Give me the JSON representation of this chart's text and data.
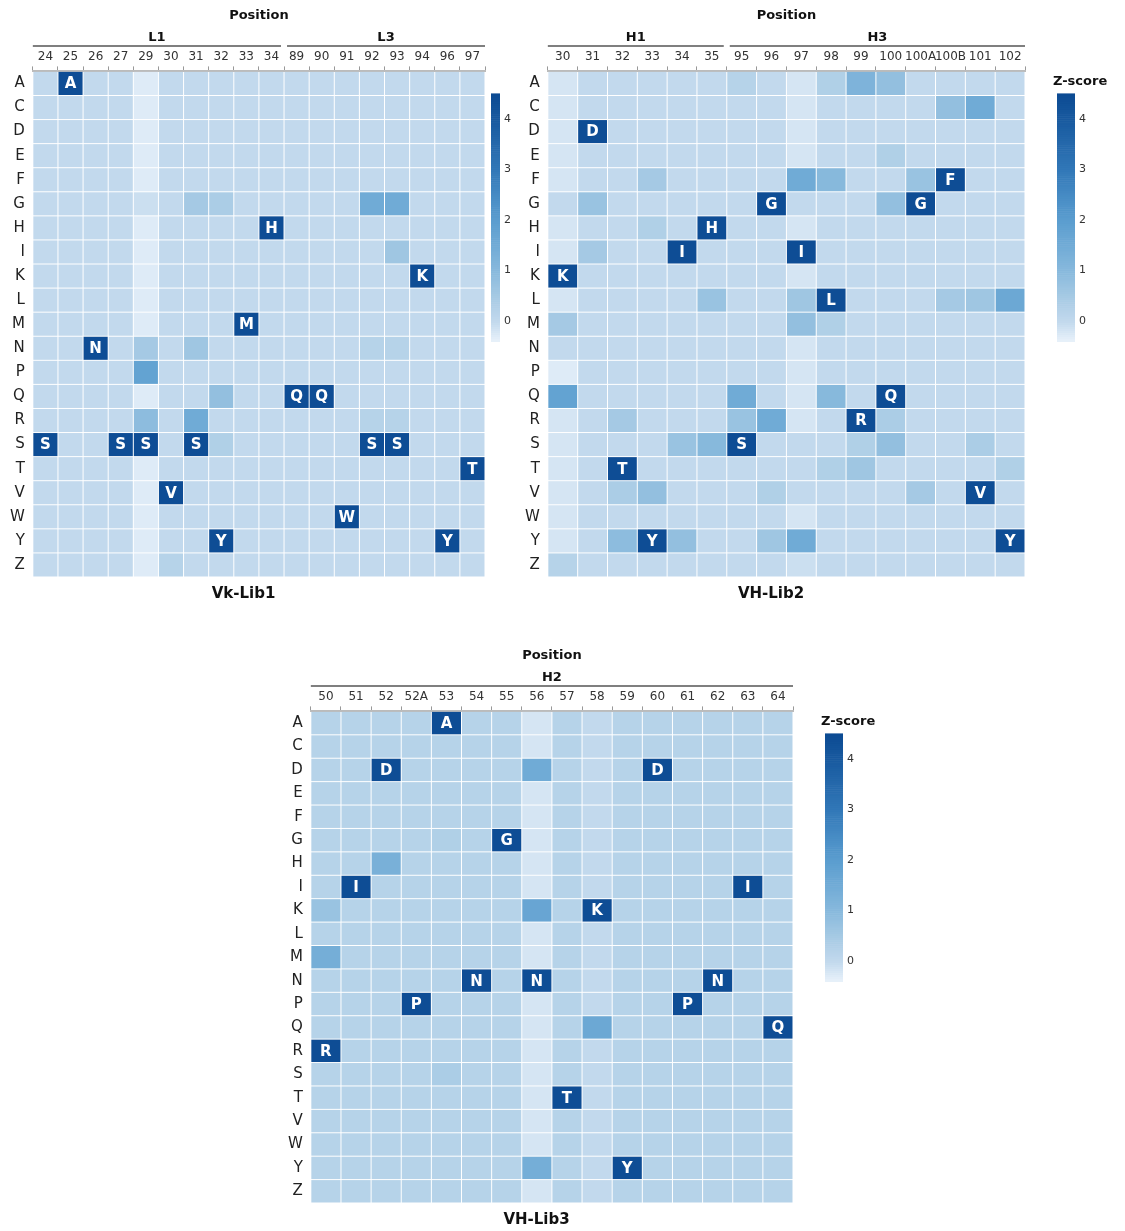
{
  "chart_data": [
    {
      "type": "heatmap",
      "title": "Vk-Lib1",
      "xlabel": "Position",
      "annotations": [
        "L1",
        "L3"
      ],
      "categories": [
        "24",
        "25",
        "26",
        "27",
        "29",
        "30",
        "31",
        "32",
        "33",
        "34",
        "89",
        "90",
        "91",
        "92",
        "93",
        "94",
        "96",
        "97"
      ],
      "y_categories": [
        "A",
        "C",
        "D",
        "E",
        "F",
        "G",
        "H",
        "I",
        "K",
        "L",
        "M",
        "N",
        "P",
        "Q",
        "R",
        "S",
        "T",
        "V",
        "W",
        "Y",
        "Z"
      ],
      "clim": [
        -0.4,
        4.5
      ],
      "cticks": [
        0,
        1,
        2,
        3,
        4
      ],
      "cells": [
        [
          0,
          4.4,
          0,
          0,
          -0.3,
          0,
          0,
          0,
          0,
          0,
          0,
          0,
          0,
          0,
          0,
          0,
          0,
          0
        ],
        [
          0,
          0,
          0,
          0,
          -0.3,
          0,
          0,
          0,
          0,
          0,
          0,
          0,
          0,
          0,
          0,
          0,
          0,
          0
        ],
        [
          0,
          0,
          0,
          0,
          -0.3,
          0,
          0,
          0,
          0,
          0,
          0,
          0,
          0,
          0,
          0,
          0,
          0,
          0
        ],
        [
          0,
          0,
          0,
          0,
          -0.3,
          0,
          0,
          0,
          0,
          0,
          0,
          0,
          0,
          0,
          0,
          0,
          0,
          0
        ],
        [
          0,
          0,
          0,
          0,
          -0.3,
          0,
          0,
          0,
          0,
          0,
          0,
          0,
          0,
          0,
          0,
          0,
          0,
          0
        ],
        [
          0,
          0,
          0,
          0,
          -0.1,
          0,
          0.5,
          0.4,
          0,
          0,
          0,
          0,
          0,
          1.5,
          1.5,
          0,
          0,
          0
        ],
        [
          0,
          0,
          0,
          0,
          -0.3,
          0,
          0,
          0,
          0,
          4.4,
          0,
          0,
          0,
          0,
          0,
          0,
          0,
          0
        ],
        [
          0,
          0,
          0,
          0,
          -0.3,
          0,
          0,
          0,
          0,
          0,
          0,
          0,
          0,
          0,
          0.6,
          0,
          0,
          0
        ],
        [
          0,
          0,
          0,
          0,
          -0.3,
          0,
          0,
          0,
          0,
          0,
          0,
          0,
          0,
          0,
          0,
          4.4,
          0,
          0
        ],
        [
          0,
          0,
          0,
          0,
          -0.3,
          0,
          0,
          0,
          0,
          0,
          0,
          0,
          0,
          0,
          0,
          0,
          0,
          0
        ],
        [
          0,
          0,
          0,
          0,
          -0.3,
          0,
          0,
          0,
          4.4,
          0,
          0,
          0,
          0,
          0,
          0,
          0,
          0,
          0
        ],
        [
          0,
          0,
          4.4,
          0,
          0.5,
          0,
          0.6,
          0,
          0,
          0,
          0,
          0,
          0,
          0.2,
          0.2,
          0,
          0,
          0
        ],
        [
          0,
          0,
          0,
          0,
          1.8,
          0,
          0,
          0,
          0,
          0,
          0,
          0,
          0,
          0,
          0,
          0,
          0,
          0
        ],
        [
          0,
          0,
          0,
          0,
          -0.3,
          0,
          0,
          0.8,
          0,
          0,
          4.4,
          4.4,
          0,
          0,
          0,
          0,
          0,
          0
        ],
        [
          0,
          0,
          0,
          0,
          0.9,
          0,
          1.5,
          0,
          0,
          0,
          0,
          0,
          0,
          0.2,
          0.2,
          0,
          0,
          0
        ],
        [
          4.4,
          0,
          0,
          4.4,
          4.4,
          0,
          4.4,
          0.3,
          0,
          0,
          0,
          0,
          0,
          4.4,
          4.4,
          0,
          0,
          0
        ],
        [
          0,
          0,
          0,
          0,
          -0.3,
          0,
          0,
          0,
          0,
          0,
          0,
          0,
          0,
          0,
          0,
          0,
          0,
          4.4
        ],
        [
          0,
          0,
          0,
          0,
          -0.3,
          4.4,
          0,
          0,
          0,
          0,
          0,
          0,
          0,
          0,
          0,
          0,
          0,
          0
        ],
        [
          0,
          0,
          0,
          0,
          -0.3,
          0,
          0,
          0,
          0,
          0,
          0,
          0,
          4.4,
          0,
          0,
          0,
          0,
          0
        ],
        [
          0,
          0,
          0,
          0,
          -0.3,
          0,
          0,
          4.4,
          0,
          0,
          0,
          0,
          0,
          0,
          0,
          0,
          4.4,
          0
        ],
        [
          0,
          0,
          0,
          0,
          -0.3,
          0.2,
          0,
          0,
          0,
          0,
          0,
          0,
          0,
          0,
          0,
          0,
          0,
          0
        ]
      ],
      "cell_labels": [
        [
          null,
          "A",
          null,
          null,
          null,
          null,
          null,
          null,
          null,
          null,
          null,
          null,
          null,
          null,
          null,
          null,
          null,
          null
        ],
        [
          null,
          null,
          null,
          null,
          null,
          null,
          null,
          null,
          null,
          null,
          null,
          null,
          null,
          null,
          null,
          null,
          null,
          null
        ],
        [
          null,
          null,
          null,
          null,
          null,
          null,
          null,
          null,
          null,
          null,
          null,
          null,
          null,
          null,
          null,
          null,
          null,
          null
        ],
        [
          null,
          null,
          null,
          null,
          null,
          null,
          null,
          null,
          null,
          null,
          null,
          null,
          null,
          null,
          null,
          null,
          null,
          null
        ],
        [
          null,
          null,
          null,
          null,
          null,
          null,
          null,
          null,
          null,
          null,
          null,
          null,
          null,
          null,
          null,
          null,
          null,
          null
        ],
        [
          null,
          null,
          null,
          null,
          null,
          null,
          null,
          null,
          null,
          null,
          null,
          null,
          null,
          null,
          null,
          null,
          null,
          null
        ],
        [
          null,
          null,
          null,
          null,
          null,
          null,
          null,
          null,
          null,
          "H",
          null,
          null,
          null,
          null,
          null,
          null,
          null,
          null
        ],
        [
          null,
          null,
          null,
          null,
          null,
          null,
          null,
          null,
          null,
          null,
          null,
          null,
          null,
          null,
          null,
          null,
          null,
          null
        ],
        [
          null,
          null,
          null,
          null,
          null,
          null,
          null,
          null,
          null,
          null,
          null,
          null,
          null,
          null,
          null,
          "K",
          null,
          null
        ],
        [
          null,
          null,
          null,
          null,
          null,
          null,
          null,
          null,
          null,
          null,
          null,
          null,
          null,
          null,
          null,
          null,
          null,
          null
        ],
        [
          null,
          null,
          null,
          null,
          null,
          null,
          null,
          null,
          "M",
          null,
          null,
          null,
          null,
          null,
          null,
          null,
          null,
          null
        ],
        [
          null,
          null,
          "N",
          null,
          null,
          null,
          null,
          null,
          null,
          null,
          null,
          null,
          null,
          null,
          null,
          null,
          null,
          null
        ],
        [
          null,
          null,
          null,
          null,
          null,
          null,
          null,
          null,
          null,
          null,
          null,
          null,
          null,
          null,
          null,
          null,
          null,
          null
        ],
        [
          null,
          null,
          null,
          null,
          null,
          null,
          null,
          null,
          null,
          null,
          "Q",
          "Q",
          null,
          null,
          null,
          null,
          null,
          null
        ],
        [
          null,
          null,
          null,
          null,
          null,
          null,
          null,
          null,
          null,
          null,
          null,
          null,
          null,
          null,
          null,
          null,
          null,
          null
        ],
        [
          "S",
          null,
          null,
          "S",
          "S",
          null,
          "S",
          null,
          null,
          null,
          null,
          null,
          null,
          "S",
          "S",
          null,
          null,
          null
        ],
        [
          null,
          null,
          null,
          null,
          null,
          null,
          null,
          null,
          null,
          null,
          null,
          null,
          null,
          null,
          null,
          null,
          null,
          "T"
        ],
        [
          null,
          null,
          null,
          null,
          null,
          "V",
          null,
          null,
          null,
          null,
          null,
          null,
          null,
          null,
          null,
          null,
          null,
          null
        ],
        [
          null,
          null,
          null,
          null,
          null,
          null,
          null,
          null,
          null,
          null,
          null,
          null,
          "W",
          null,
          null,
          null,
          null,
          null
        ],
        [
          null,
          null,
          null,
          null,
          null,
          null,
          null,
          "Y",
          null,
          null,
          null,
          null,
          null,
          null,
          null,
          null,
          "Y",
          null
        ],
        [
          null,
          null,
          null,
          null,
          null,
          null,
          null,
          null,
          null,
          null,
          null,
          null,
          null,
          null,
          null,
          null,
          null,
          null
        ]
      ]
    },
    {
      "type": "heatmap",
      "title": "VH-Lib2",
      "xlabel": "Position",
      "clabel": "Z-score",
      "annotations": [
        "H1",
        "H3"
      ],
      "categories": [
        "30",
        "31",
        "32",
        "33",
        "34",
        "35",
        "95",
        "96",
        "97",
        "98",
        "99",
        "100",
        "100A",
        "100B",
        "101",
        "102"
      ],
      "y_categories": [
        "A",
        "C",
        "D",
        "E",
        "F",
        "G",
        "H",
        "I",
        "K",
        "L",
        "M",
        "N",
        "P",
        "Q",
        "R",
        "S",
        "T",
        "V",
        "W",
        "Y",
        "Z"
      ],
      "clim": [
        -0.4,
        4.5
      ],
      "cticks": [
        0,
        1,
        2,
        3,
        4
      ],
      "cells": [
        [
          -0.2,
          0,
          0,
          0,
          0,
          0,
          0.2,
          0,
          -0.2,
          0.3,
          1.2,
          0.8,
          0,
          0,
          0,
          0
        ],
        [
          -0.2,
          0,
          0,
          0,
          0,
          0,
          0,
          0,
          -0.2,
          0,
          0,
          0,
          0,
          0.8,
          1.5,
          0
        ],
        [
          -0.2,
          4.4,
          0,
          0,
          0,
          0,
          0,
          0,
          -0.2,
          0,
          0,
          0,
          0,
          0,
          0,
          0
        ],
        [
          -0.2,
          0,
          0,
          0,
          0,
          0,
          0,
          0,
          -0.2,
          0,
          0,
          0.3,
          0,
          0,
          0,
          0
        ],
        [
          -0.2,
          0,
          0,
          0.5,
          0,
          0,
          0,
          0,
          1.5,
          1,
          0,
          0,
          0.7,
          4.4,
          0,
          0
        ],
        [
          0,
          0.7,
          0,
          0,
          0,
          0,
          0,
          4.4,
          0,
          0,
          0,
          0.8,
          4.4,
          0,
          0,
          0
        ],
        [
          -0.2,
          0,
          0,
          0.3,
          0,
          4.4,
          0,
          0,
          -0.2,
          0,
          0,
          0,
          0,
          0,
          0,
          0
        ],
        [
          -0.2,
          0.5,
          0,
          0,
          4.4,
          0,
          0,
          0,
          4.4,
          0,
          0,
          0,
          0,
          0,
          0,
          0
        ],
        [
          4.4,
          0,
          0,
          0,
          0,
          0,
          0,
          0,
          -0.2,
          0,
          0,
          0,
          0,
          0,
          0,
          0
        ],
        [
          -0.2,
          0,
          0,
          0,
          0,
          0.7,
          0,
          0,
          0.6,
          4.4,
          0,
          0,
          0,
          0.5,
          0.6,
          1.6
        ],
        [
          0.5,
          0,
          0,
          0,
          0,
          0,
          0,
          0,
          0.8,
          0.3,
          0,
          0,
          0,
          0,
          0,
          0
        ],
        [
          0,
          0,
          0,
          0,
          0,
          0,
          0,
          0,
          -0.2,
          0,
          0,
          0,
          0,
          0,
          0,
          0
        ],
        [
          -0.3,
          0,
          0,
          0,
          0,
          0,
          0,
          0,
          -0.2,
          0,
          0,
          0,
          0,
          0,
          0,
          0
        ],
        [
          1.8,
          0,
          0,
          0,
          0,
          0,
          1.5,
          0,
          -0.2,
          1,
          0,
          4.4,
          0,
          0,
          0,
          0
        ],
        [
          -0.2,
          0,
          0.5,
          0,
          0,
          0,
          0.7,
          1.5,
          -0.2,
          0,
          4.4,
          0.4,
          0,
          0,
          0,
          0
        ],
        [
          -0.2,
          0,
          0,
          0,
          0.7,
          1,
          4.4,
          0,
          0,
          0,
          0.3,
          0.8,
          0,
          0,
          0.4,
          0
        ],
        [
          -0.2,
          0,
          4.4,
          0,
          0,
          0,
          0,
          0,
          0,
          0.3,
          0.6,
          0,
          0,
          0,
          0,
          0.3
        ],
        [
          -0.2,
          0,
          0.4,
          0.8,
          0,
          0,
          0,
          0.3,
          0,
          0,
          0,
          0,
          0.5,
          0,
          4.4,
          0
        ],
        [
          -0.2,
          0,
          0,
          0,
          0,
          0,
          0,
          0,
          -0.2,
          0,
          0,
          0,
          0,
          0,
          0,
          0
        ],
        [
          -0.2,
          0,
          0.9,
          4.4,
          0.8,
          0,
          0,
          0.6,
          1.5,
          0,
          0,
          0,
          0,
          0,
          0,
          4.4
        ],
        [
          0.2,
          0,
          0,
          0,
          0,
          0,
          0,
          0,
          -0.1,
          0,
          0,
          0,
          0,
          0,
          0,
          0
        ]
      ],
      "cell_labels": [
        [
          null,
          null,
          null,
          null,
          null,
          null,
          null,
          null,
          null,
          null,
          null,
          null,
          null,
          null,
          null,
          null
        ],
        [
          null,
          null,
          null,
          null,
          null,
          null,
          null,
          null,
          null,
          null,
          null,
          null,
          null,
          null,
          null,
          null
        ],
        [
          null,
          "D",
          null,
          null,
          null,
          null,
          null,
          null,
          null,
          null,
          null,
          null,
          null,
          null,
          null,
          null
        ],
        [
          null,
          null,
          null,
          null,
          null,
          null,
          null,
          null,
          null,
          null,
          null,
          null,
          null,
          null,
          null,
          null
        ],
        [
          null,
          null,
          null,
          null,
          null,
          null,
          null,
          null,
          null,
          null,
          null,
          null,
          null,
          "F",
          null,
          null
        ],
        [
          null,
          null,
          null,
          null,
          null,
          null,
          null,
          "G",
          null,
          null,
          null,
          null,
          "G",
          null,
          null,
          null
        ],
        [
          null,
          null,
          null,
          null,
          null,
          "H",
          null,
          null,
          null,
          null,
          null,
          null,
          null,
          null,
          null,
          null
        ],
        [
          null,
          null,
          null,
          null,
          "I",
          null,
          null,
          null,
          "I",
          null,
          null,
          null,
          null,
          null,
          null,
          null
        ],
        [
          "K",
          null,
          null,
          null,
          null,
          null,
          null,
          null,
          null,
          null,
          null,
          null,
          null,
          null,
          null,
          null
        ],
        [
          null,
          null,
          null,
          null,
          null,
          null,
          null,
          null,
          null,
          "L",
          null,
          null,
          null,
          null,
          null,
          null
        ],
        [
          null,
          null,
          null,
          null,
          null,
          null,
          null,
          null,
          null,
          null,
          null,
          null,
          null,
          null,
          null,
          null
        ],
        [
          null,
          null,
          null,
          null,
          null,
          null,
          null,
          null,
          null,
          null,
          null,
          null,
          null,
          null,
          null,
          null
        ],
        [
          null,
          null,
          null,
          null,
          null,
          null,
          null,
          null,
          null,
          null,
          null,
          null,
          null,
          null,
          null,
          null
        ],
        [
          null,
          null,
          null,
          null,
          null,
          null,
          null,
          null,
          null,
          null,
          null,
          "Q",
          null,
          null,
          null,
          null
        ],
        [
          null,
          null,
          null,
          null,
          null,
          null,
          null,
          null,
          null,
          null,
          "R",
          null,
          null,
          null,
          null,
          null
        ],
        [
          null,
          null,
          null,
          null,
          null,
          null,
          "S",
          null,
          null,
          null,
          null,
          null,
          null,
          null,
          null,
          null
        ],
        [
          null,
          null,
          "T",
          null,
          null,
          null,
          null,
          null,
          null,
          null,
          null,
          null,
          null,
          null,
          null,
          null
        ],
        [
          null,
          null,
          null,
          null,
          null,
          null,
          null,
          null,
          null,
          null,
          null,
          null,
          null,
          null,
          "V",
          null
        ],
        [
          null,
          null,
          null,
          null,
          null,
          null,
          null,
          null,
          null,
          null,
          null,
          null,
          null,
          null,
          null,
          null
        ],
        [
          null,
          null,
          null,
          "Y",
          null,
          null,
          null,
          null,
          null,
          null,
          null,
          null,
          null,
          null,
          null,
          "Y"
        ],
        [
          null,
          null,
          null,
          null,
          null,
          null,
          null,
          null,
          null,
          null,
          null,
          null,
          null,
          null,
          null,
          null
        ]
      ]
    },
    {
      "type": "heatmap",
      "title": "VH-Lib3",
      "xlabel": "Position",
      "clabel": "Z-score",
      "annotations": [
        "H2"
      ],
      "categories": [
        "50",
        "51",
        "52",
        "52A",
        "53",
        "54",
        "55",
        "56",
        "57",
        "58",
        "59",
        "60",
        "61",
        "62",
        "63",
        "64"
      ],
      "y_categories": [
        "A",
        "C",
        "D",
        "E",
        "F",
        "G",
        "H",
        "I",
        "K",
        "L",
        "M",
        "N",
        "P",
        "Q",
        "R",
        "S",
        "T",
        "V",
        "W",
        "Y",
        "Z"
      ],
      "clim": [
        -0.4,
        4.5
      ],
      "cticks": [
        0,
        1,
        2,
        3,
        4
      ],
      "cells": [
        [
          0.2,
          0.2,
          0.2,
          0.2,
          4.4,
          0.2,
          0.2,
          -0.2,
          0.2,
          0,
          0.2,
          0.2,
          0.2,
          0.2,
          0.2,
          0.2
        ],
        [
          0.2,
          0.2,
          0.2,
          0.2,
          0.2,
          0.2,
          0.2,
          -0.2,
          0.2,
          0,
          0.2,
          0.2,
          0.2,
          0.2,
          0.2,
          0.2
        ],
        [
          0.2,
          0.2,
          4.4,
          0.2,
          0.2,
          0.2,
          0.2,
          1.5,
          0.2,
          0,
          0.2,
          4.4,
          0.2,
          0.2,
          0.2,
          0.2
        ],
        [
          0.2,
          0.2,
          0.2,
          0.2,
          0.2,
          0.2,
          0.2,
          -0.2,
          0.2,
          0,
          0.2,
          0.2,
          0.2,
          0.2,
          0.2,
          0.2
        ],
        [
          0.2,
          0.2,
          0.2,
          0.2,
          0.2,
          0.2,
          0.2,
          -0.2,
          0.2,
          0,
          0.2,
          0.2,
          0.2,
          0.2,
          0.2,
          0.2
        ],
        [
          0.2,
          0.2,
          0.2,
          0.2,
          0.3,
          0.2,
          4.4,
          -0.2,
          0.2,
          0,
          0.2,
          0.2,
          0.2,
          0.2,
          0.2,
          0.2
        ],
        [
          0.2,
          0.2,
          1.3,
          0.2,
          0.2,
          0.2,
          0.2,
          -0.2,
          0.2,
          0,
          0.2,
          0.2,
          0.2,
          0.2,
          0.2,
          0.2
        ],
        [
          0.2,
          4.4,
          0.2,
          0.2,
          0.2,
          0.2,
          0.2,
          -0.2,
          0.2,
          0,
          0.2,
          0.2,
          0.2,
          0.2,
          4.4,
          0.2
        ],
        [
          0.7,
          0.2,
          0.2,
          0.2,
          0.2,
          0.2,
          0.2,
          1.7,
          0.2,
          4.4,
          0.2,
          0.2,
          0.2,
          0.2,
          0.2,
          0.2
        ],
        [
          0.2,
          0.2,
          0.2,
          0.2,
          0.2,
          0.2,
          0.2,
          -0.2,
          0.2,
          0,
          0.2,
          0.2,
          0.2,
          0.2,
          0.2,
          0.2
        ],
        [
          1.4,
          0.2,
          0.2,
          0.2,
          0.2,
          0.2,
          0.2,
          -0.2,
          0.2,
          0,
          0.2,
          0.2,
          0.2,
          0.2,
          0.2,
          0.2
        ],
        [
          0.2,
          0.2,
          0.2,
          0.2,
          0.2,
          4.4,
          0.2,
          4.4,
          0.2,
          0,
          0.2,
          0.2,
          0.2,
          4.4,
          0.2,
          0.2
        ],
        [
          0.2,
          0.2,
          0.2,
          4.4,
          0.2,
          0.2,
          0.2,
          -0.2,
          0.2,
          0,
          0.2,
          0.2,
          4.4,
          0.2,
          0.2,
          0.2
        ],
        [
          0.2,
          0.2,
          0.2,
          0.2,
          0.2,
          0.2,
          0.2,
          -0.2,
          0.2,
          1.6,
          0.2,
          0.2,
          0.2,
          0.2,
          0.2,
          4.4
        ],
        [
          4.4,
          0.2,
          0.2,
          0.2,
          0.2,
          0.2,
          0.2,
          -0.2,
          0.2,
          0,
          0.2,
          0.2,
          0.2,
          0.2,
          0.2,
          0.2
        ],
        [
          0.2,
          0.2,
          0.2,
          0.2,
          0.4,
          0.2,
          0.2,
          -0.2,
          0.2,
          0,
          0.2,
          0.2,
          0.2,
          0.2,
          0.2,
          0.2
        ],
        [
          0.2,
          0.2,
          0.2,
          0.2,
          0.2,
          0.2,
          0.2,
          -0.2,
          4.4,
          0,
          0.2,
          0.2,
          0.2,
          0.2,
          0.2,
          0.2
        ],
        [
          0.2,
          0.2,
          0.2,
          0.2,
          0.2,
          0.2,
          0.2,
          -0.2,
          0.2,
          0,
          0.2,
          0.2,
          0.2,
          0.2,
          0.2,
          0.2
        ],
        [
          0.2,
          0.2,
          0.2,
          0.2,
          0.2,
          0.2,
          0.2,
          -0.2,
          0.2,
          0,
          0.2,
          0.2,
          0.2,
          0.2,
          0.2,
          0.2
        ],
        [
          0.2,
          0.2,
          0.2,
          0.2,
          0.2,
          0.2,
          0.2,
          1.4,
          0.2,
          0,
          4.4,
          0.2,
          0.2,
          0.2,
          0.2,
          0.2
        ],
        [
          0.2,
          0.2,
          0.2,
          0.2,
          0.2,
          0.2,
          0.2,
          -0.2,
          0.2,
          0,
          0.2,
          0.2,
          0.2,
          0.2,
          0.2,
          0.2
        ]
      ],
      "cell_labels": [
        [
          null,
          null,
          null,
          null,
          "A",
          null,
          null,
          null,
          null,
          null,
          null,
          null,
          null,
          null,
          null,
          null
        ],
        [
          null,
          null,
          null,
          null,
          null,
          null,
          null,
          null,
          null,
          null,
          null,
          null,
          null,
          null,
          null,
          null
        ],
        [
          null,
          null,
          "D",
          null,
          null,
          null,
          null,
          null,
          null,
          null,
          null,
          "D",
          null,
          null,
          null,
          null
        ],
        [
          null,
          null,
          null,
          null,
          null,
          null,
          null,
          null,
          null,
          null,
          null,
          null,
          null,
          null,
          null,
          null
        ],
        [
          null,
          null,
          null,
          null,
          null,
          null,
          null,
          null,
          null,
          null,
          null,
          null,
          null,
          null,
          null,
          null
        ],
        [
          null,
          null,
          null,
          null,
          null,
          null,
          "G",
          null,
          null,
          null,
          null,
          null,
          null,
          null,
          null,
          null
        ],
        [
          null,
          null,
          null,
          null,
          null,
          null,
          null,
          null,
          null,
          null,
          null,
          null,
          null,
          null,
          null,
          null
        ],
        [
          null,
          "I",
          null,
          null,
          null,
          null,
          null,
          null,
          null,
          null,
          null,
          null,
          null,
          null,
          "I",
          null
        ],
        [
          null,
          null,
          null,
          null,
          null,
          null,
          null,
          null,
          null,
          "K",
          null,
          null,
          null,
          null,
          null,
          null
        ],
        [
          null,
          null,
          null,
          null,
          null,
          null,
          null,
          null,
          null,
          null,
          null,
          null,
          null,
          null,
          null,
          null
        ],
        [
          null,
          null,
          null,
          null,
          null,
          null,
          null,
          null,
          null,
          null,
          null,
          null,
          null,
          null,
          null,
          null
        ],
        [
          null,
          null,
          null,
          null,
          null,
          "N",
          null,
          "N",
          null,
          null,
          null,
          null,
          null,
          "N",
          null,
          null
        ],
        [
          null,
          null,
          null,
          "P",
          null,
          null,
          null,
          null,
          null,
          null,
          null,
          null,
          "P",
          null,
          null,
          null
        ],
        [
          null,
          null,
          null,
          null,
          null,
          null,
          null,
          null,
          null,
          null,
          null,
          null,
          null,
          null,
          null,
          "Q"
        ],
        [
          "R",
          null,
          null,
          null,
          null,
          null,
          null,
          null,
          null,
          null,
          null,
          null,
          null,
          null,
          null,
          null
        ],
        [
          null,
          null,
          null,
          null,
          null,
          null,
          null,
          null,
          null,
          null,
          null,
          null,
          null,
          null,
          null,
          null
        ],
        [
          null,
          null,
          null,
          null,
          null,
          null,
          null,
          null,
          "T",
          null,
          null,
          null,
          null,
          null,
          null,
          null
        ],
        [
          null,
          null,
          null,
          null,
          null,
          null,
          null,
          null,
          null,
          null,
          null,
          null,
          null,
          null,
          null,
          null
        ],
        [
          null,
          null,
          null,
          null,
          null,
          null,
          null,
          null,
          null,
          null,
          null,
          null,
          null,
          null,
          null,
          null
        ],
        [
          null,
          null,
          null,
          null,
          null,
          null,
          null,
          null,
          null,
          null,
          "Y",
          null,
          null,
          null,
          null,
          null
        ],
        [
          null,
          null,
          null,
          null,
          null,
          null,
          null,
          null,
          null,
          null,
          null,
          null,
          null,
          null,
          null,
          null
        ]
      ]
    }
  ]
}
